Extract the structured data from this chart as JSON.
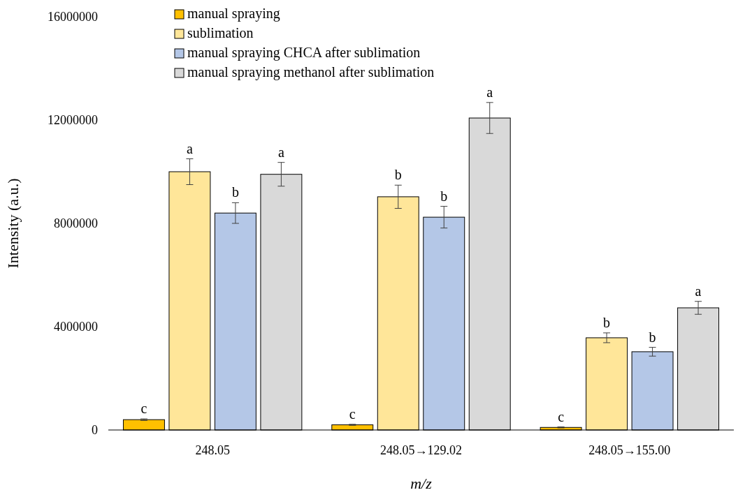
{
  "chart_data": {
    "type": "bar",
    "xlabel": "m/z",
    "ylabel": "Intensity (a.u.)",
    "categories": [
      "248.05",
      "248.05→129.02",
      "248.05→155.00"
    ],
    "series": [
      {
        "name": "manual spraying",
        "color": "#ffc000",
        "values": [
          400000,
          200000,
          100000
        ],
        "errors": [
          30000,
          20000,
          20000
        ],
        "value_labels": [
          "c",
          "c",
          "c"
        ]
      },
      {
        "name": "sublimation",
        "color": "#ffe699",
        "values": [
          10000000,
          9030000,
          3570000
        ],
        "errors": [
          500000,
          450000,
          190000
        ],
        "value_labels": [
          "a",
          "b",
          "b"
        ]
      },
      {
        "name": "manual spraying CHCA after sublimation",
        "color": "#b4c7e7",
        "values": [
          8400000,
          8240000,
          3030000
        ],
        "errors": [
          400000,
          420000,
          170000
        ],
        "value_labels": [
          "b",
          "b",
          "b"
        ]
      },
      {
        "name": "manual spraying methanol after sublimation",
        "color": "#d9d9d9",
        "values": [
          9900000,
          12080000,
          4730000
        ],
        "errors": [
          460000,
          600000,
          250000
        ],
        "value_labels": [
          "a",
          "a",
          "a"
        ]
      }
    ],
    "ylim": [
      0,
      16000000
    ],
    "yticks": [
      0,
      4000000,
      8000000,
      12000000,
      16000000
    ],
    "grid": false,
    "legend": "top left"
  }
}
